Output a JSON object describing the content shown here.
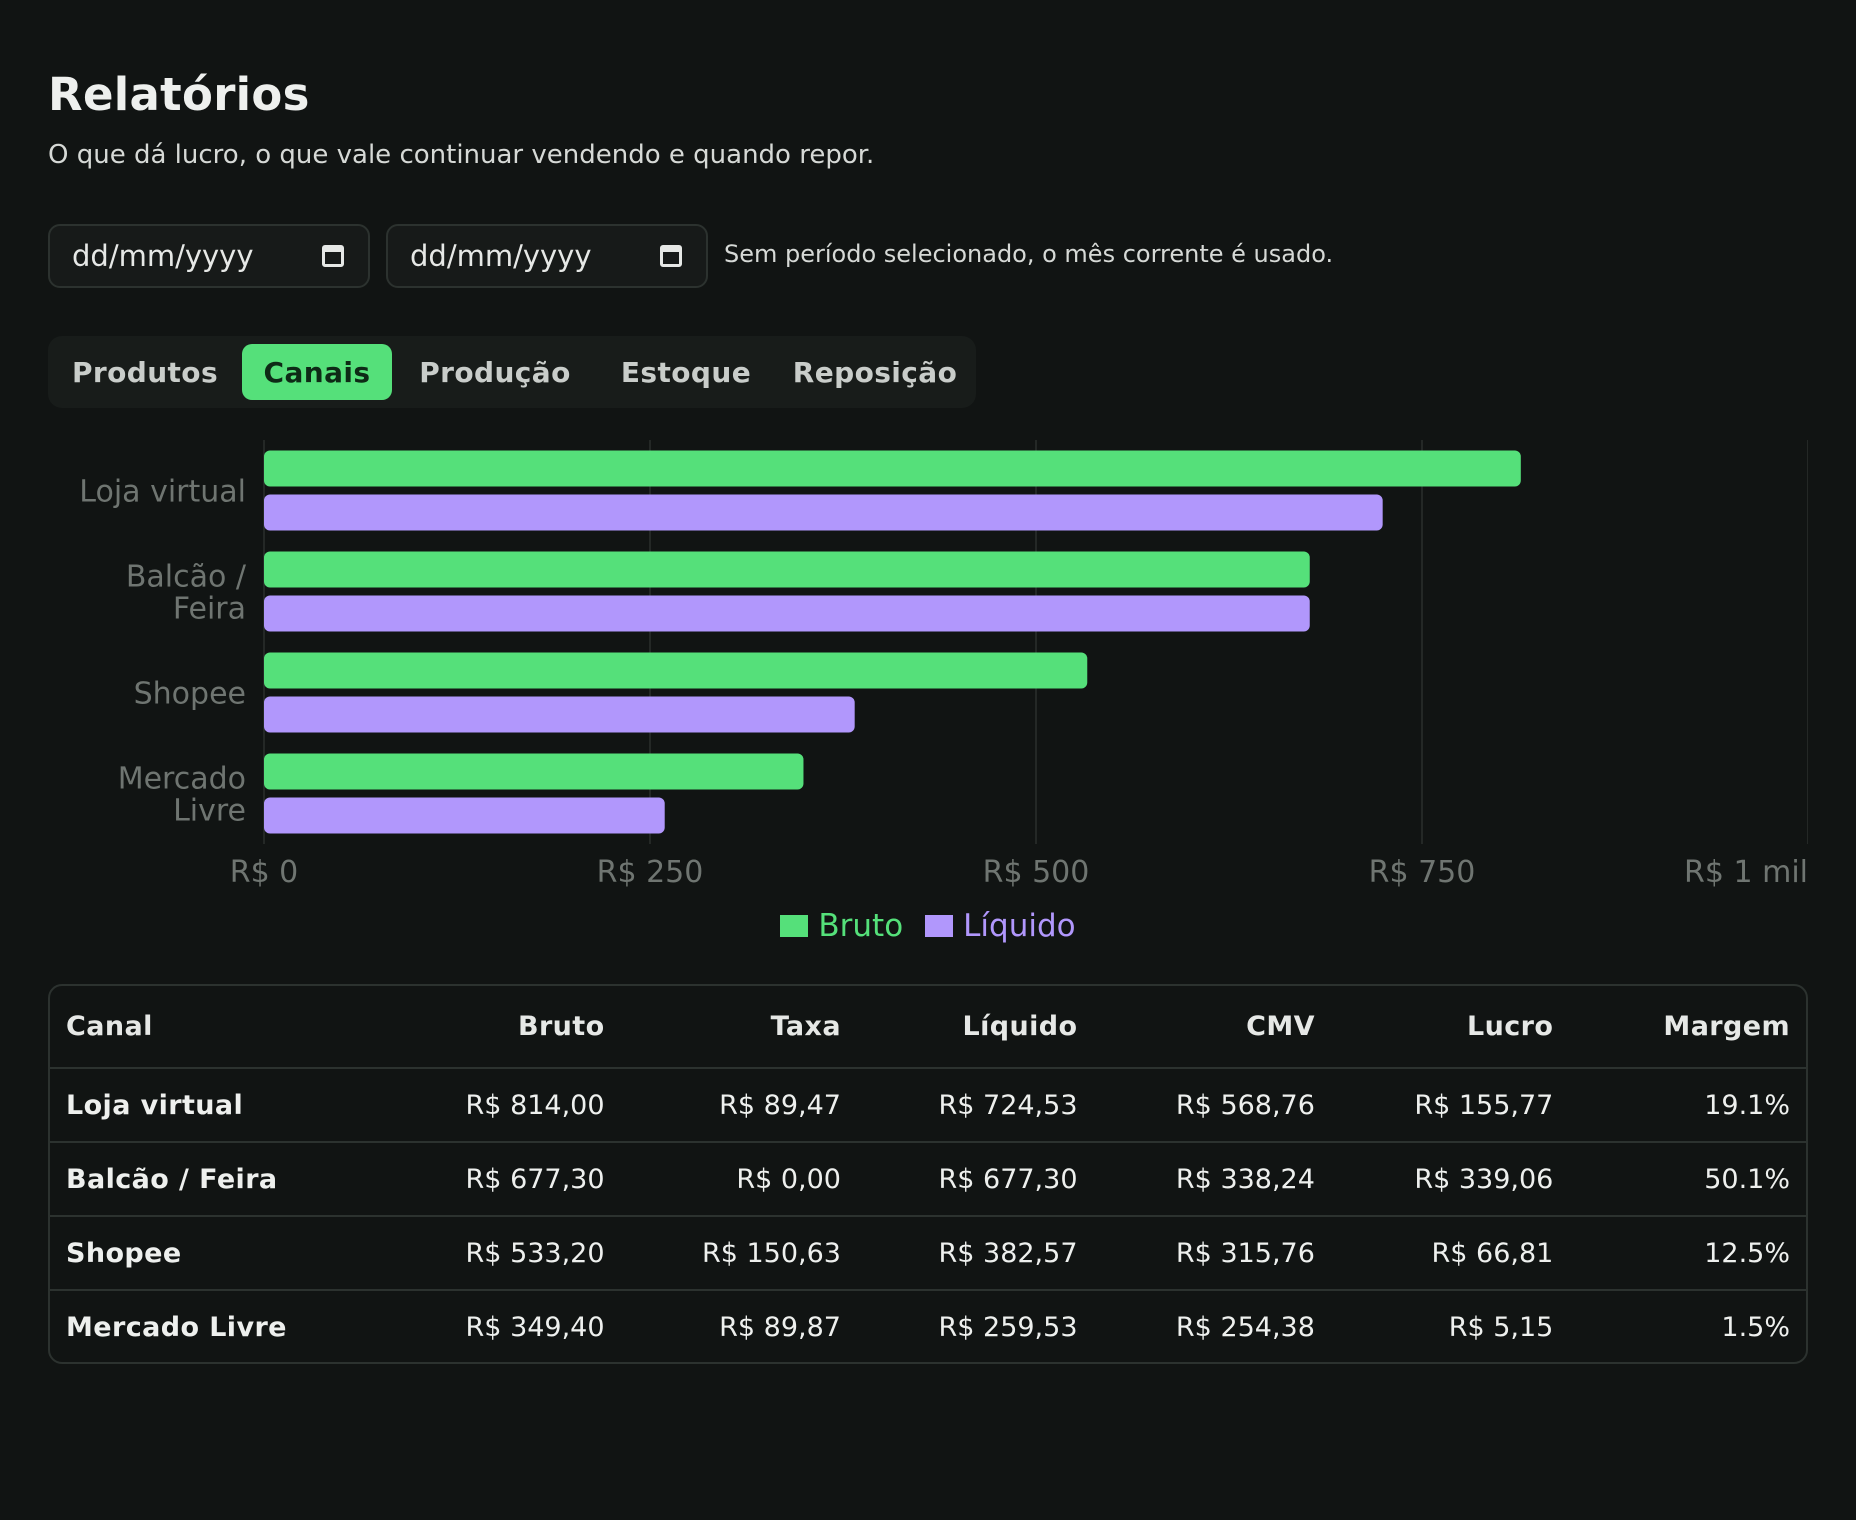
{
  "header": {
    "title": "Relatórios",
    "subtitle": "O que dá lucro, o que vale continuar vendendo e quando repor."
  },
  "filters": {
    "start_placeholder": "dd/mm/yyyy",
    "end_placeholder": "dd/mm/yyyy",
    "note": "Sem período selecionado, o mês corrente é usado."
  },
  "tabs": [
    {
      "label": "Produtos",
      "active": false
    },
    {
      "label": "Canais",
      "active": true
    },
    {
      "label": "Produção",
      "active": false
    },
    {
      "label": "Estoque",
      "active": false
    },
    {
      "label": "Reposição",
      "active": false
    }
  ],
  "chart_data": {
    "type": "bar",
    "orientation": "horizontal",
    "categories": [
      [
        "Loja virtual"
      ],
      [
        "Balcão /",
        "Feira"
      ],
      [
        "Shopee"
      ],
      [
        "Mercado",
        "Livre"
      ]
    ],
    "series": [
      {
        "name": "Bruto",
        "color": "#55e07a",
        "values": [
          814.0,
          677.3,
          533.2,
          349.4
        ]
      },
      {
        "name": "Líquido",
        "color": "#b197fc",
        "values": [
          724.53,
          677.3,
          382.57,
          259.53
        ]
      }
    ],
    "x_ticks": [
      0,
      250,
      500,
      750,
      1000
    ],
    "x_tick_labels": [
      "R$ 0",
      "R$ 250",
      "R$ 500",
      "R$ 750",
      "R$ 1 mil"
    ],
    "xlim": [
      0,
      1000
    ],
    "grid": true,
    "legend": "bottom-center"
  },
  "table": {
    "headers": [
      "Canal",
      "Bruto",
      "Taxa",
      "Líquido",
      "CMV",
      "Lucro",
      "Margem"
    ],
    "rows": [
      [
        "Loja virtual",
        "R$ 814,00",
        "R$ 89,47",
        "R$ 724,53",
        "R$ 568,76",
        "R$ 155,77",
        "19.1%"
      ],
      [
        "Balcão / Feira",
        "R$ 677,30",
        "R$ 0,00",
        "R$ 677,30",
        "R$ 338,24",
        "R$ 339,06",
        "50.1%"
      ],
      [
        "Shopee",
        "R$ 533,20",
        "R$ 150,63",
        "R$ 382,57",
        "R$ 315,76",
        "R$ 66,81",
        "12.5%"
      ],
      [
        "Mercado Livre",
        "R$ 349,40",
        "R$ 89,87",
        "R$ 259,53",
        "R$ 254,38",
        "R$ 5,15",
        "1.5%"
      ]
    ]
  }
}
